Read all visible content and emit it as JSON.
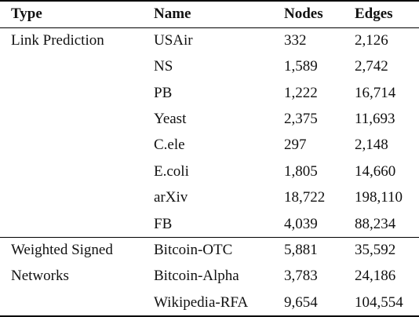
{
  "table": {
    "header": [
      "Type",
      "Name",
      "Nodes",
      "Edges"
    ],
    "groups": [
      {
        "type": [
          "Link Prediction"
        ],
        "rows": [
          [
            "USAir",
            "332",
            "2,126"
          ],
          [
            "NS",
            "1,589",
            "2,742"
          ],
          [
            "PB",
            "1,222",
            "16,714"
          ],
          [
            "Yeast",
            "2,375",
            "11,693"
          ],
          [
            "C.ele",
            "297",
            "2,148"
          ],
          [
            "E.coli",
            "1,805",
            "14,660"
          ],
          [
            "arXiv",
            "18,722",
            "198,110"
          ],
          [
            "FB",
            "4,039",
            "88,234"
          ]
        ]
      },
      {
        "type": [
          "Weighted Signed",
          "Networks"
        ],
        "rows": [
          [
            "Bitcoin-OTC",
            "5,881",
            "35,592"
          ],
          [
            "Bitcoin-Alpha",
            "3,783",
            "24,186"
          ],
          [
            "Wikipedia-RFA",
            "9,654",
            "104,554"
          ]
        ]
      }
    ]
  }
}
